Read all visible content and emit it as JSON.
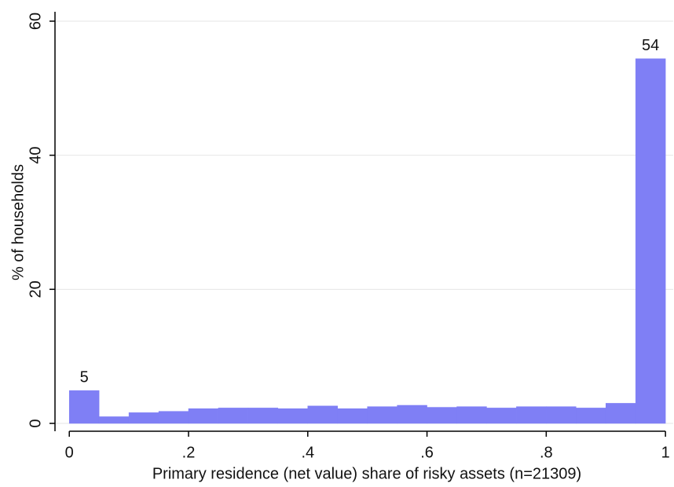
{
  "chart_data": {
    "type": "histogram",
    "x_label": "Primary residence (net value) share of risky assets (n=21309)",
    "y_label": "% of households",
    "bins": [
      0,
      0.05,
      0.1,
      0.15,
      0.2,
      0.25,
      0.3,
      0.35,
      0.4,
      0.45,
      0.5,
      0.55,
      0.6,
      0.65,
      0.7,
      0.75,
      0.8,
      0.85,
      0.9,
      0.95,
      1
    ],
    "values": [
      4.9,
      1.0,
      1.6,
      1.8,
      2.2,
      2.3,
      2.3,
      2.2,
      2.6,
      2.2,
      2.5,
      2.7,
      2.4,
      2.5,
      2.3,
      2.5,
      2.5,
      2.3,
      3.0,
      54.4
    ],
    "value_labels": [
      "5",
      null,
      null,
      null,
      null,
      null,
      null,
      null,
      null,
      null,
      null,
      null,
      null,
      null,
      null,
      null,
      null,
      null,
      null,
      "54"
    ],
    "color": "#7f7ff5",
    "xlim": [
      -0.024,
      1.013
    ],
    "ylim": [
      -1.17,
      61.4
    ],
    "xticks": [
      0,
      {
        "value": 0.2,
        "label": ".2"
      },
      {
        "value": 0.4,
        "label": ".4"
      },
      {
        "value": 0.6,
        "label": ".6"
      },
      {
        "value": 0.8,
        "label": ".8"
      },
      1
    ],
    "yticks": [
      0,
      20,
      40,
      60
    ],
    "grid": true
  }
}
